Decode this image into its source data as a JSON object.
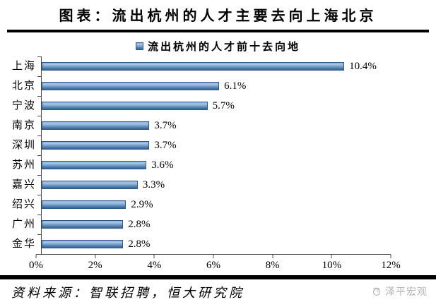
{
  "header": {
    "title": "图表：流出杭州的人才主要去向上海北京"
  },
  "chart_data": {
    "type": "bar",
    "orientation": "horizontal",
    "legend": "流出杭州的人才前十去向地",
    "legend_position": "top",
    "categories": [
      "上海",
      "北京",
      "宁波",
      "南京",
      "深圳",
      "苏州",
      "嘉兴",
      "绍兴",
      "广州",
      "金华"
    ],
    "values": [
      10.4,
      6.1,
      5.7,
      3.7,
      3.7,
      3.6,
      3.3,
      2.9,
      2.8,
      2.8
    ],
    "value_labels": [
      "10.4%",
      "6.1%",
      "5.7%",
      "3.7%",
      "3.7%",
      "3.6%",
      "3.3%",
      "2.9%",
      "2.8%",
      "2.8%"
    ],
    "xlim": [
      0,
      12
    ],
    "x_ticks": [
      "0%",
      "2%",
      "4%",
      "6%",
      "8%",
      "10%",
      "12%"
    ],
    "grid": "off",
    "bar_color_light": "#a9c7e5",
    "bar_color_dark": "#35618e",
    "bar_border_color": "#2d5a8a",
    "axis_color": "#4a4a4a"
  },
  "footer": {
    "source": "资料来源：智联招聘，恒大研究院",
    "watermark": "泽平宏观"
  }
}
